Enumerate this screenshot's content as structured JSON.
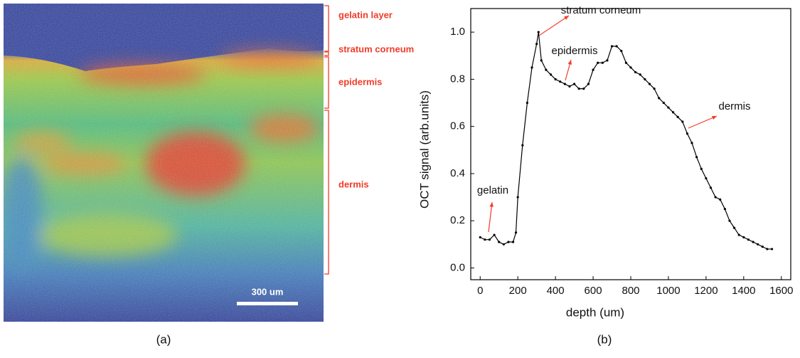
{
  "panel_a": {
    "labels": [
      "gelatin layer",
      "stratum corneum",
      "epidermis",
      "dermis"
    ],
    "scale_bar": "300 um",
    "caption": "(a)"
  },
  "chart_data": {
    "type": "line",
    "caption": "(b)",
    "x_label": "depth (um)",
    "y_label": "OCT signal (arb.units)",
    "color": "#000000",
    "x": [
      0,
      25,
      50,
      75,
      100,
      125,
      150,
      175,
      190,
      200,
      225,
      250,
      275,
      300,
      310,
      325,
      350,
      375,
      400,
      425,
      450,
      475,
      500,
      525,
      550,
      575,
      600,
      625,
      650,
      675,
      700,
      725,
      750,
      775,
      800,
      825,
      850,
      875,
      900,
      925,
      950,
      975,
      1000,
      1025,
      1050,
      1075,
      1100,
      1125,
      1150,
      1175,
      1200,
      1225,
      1250,
      1275,
      1300,
      1325,
      1350,
      1375,
      1400,
      1425,
      1450,
      1475,
      1500,
      1525,
      1550
    ],
    "values": [
      0.13,
      0.12,
      0.12,
      0.14,
      0.11,
      0.1,
      0.11,
      0.11,
      0.15,
      0.3,
      0.52,
      0.7,
      0.85,
      0.95,
      1.0,
      0.88,
      0.84,
      0.82,
      0.8,
      0.79,
      0.78,
      0.77,
      0.78,
      0.76,
      0.76,
      0.78,
      0.84,
      0.87,
      0.87,
      0.88,
      0.94,
      0.94,
      0.92,
      0.87,
      0.85,
      0.83,
      0.82,
      0.8,
      0.78,
      0.76,
      0.72,
      0.7,
      0.68,
      0.66,
      0.64,
      0.62,
      0.57,
      0.53,
      0.47,
      0.42,
      0.38,
      0.34,
      0.3,
      0.29,
      0.25,
      0.2,
      0.17,
      0.14,
      0.13,
      0.12,
      0.11,
      0.1,
      0.09,
      0.08,
      0.08
    ],
    "xlim": [
      -50,
      1650
    ],
    "ylim": [
      -0.05,
      1.1
    ],
    "xticks": [
      0,
      200,
      400,
      600,
      800,
      1000,
      1200,
      1400,
      1600
    ],
    "yticks": [
      {
        "value": 0,
        "label": "0.0"
      },
      {
        "value": 0.2,
        "label": "0.2"
      },
      {
        "value": 0.4,
        "label": "0.4"
      },
      {
        "value": 0.6,
        "label": "0.6"
      },
      {
        "value": 0.8,
        "label": "0.8"
      },
      {
        "value": 1,
        "label": "1.0"
      }
    ],
    "annotations": [
      "stratum corneum",
      "epidermis",
      "dermis",
      "gelatin"
    ]
  }
}
